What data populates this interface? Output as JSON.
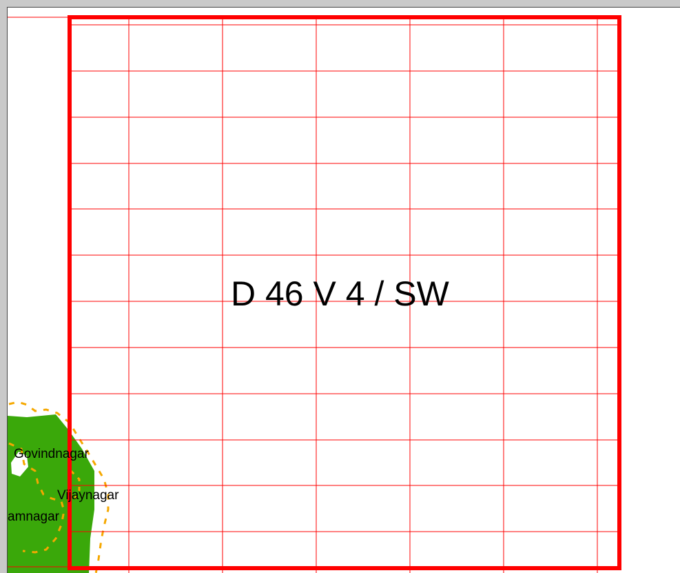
{
  "map": {
    "sheet_label": "D 46 V 4 / SW",
    "places": [
      {
        "name": "Govindnagar"
      },
      {
        "name": "Vijaynagar"
      },
      {
        "name": "amnagar"
      }
    ],
    "colors": {
      "grid": "#ff0000",
      "sheet_border": "#ff0000",
      "land_area": "#3aa80a",
      "boundary": "#f5a800",
      "page": "#ffffff",
      "background": "#c9c9c9"
    }
  }
}
